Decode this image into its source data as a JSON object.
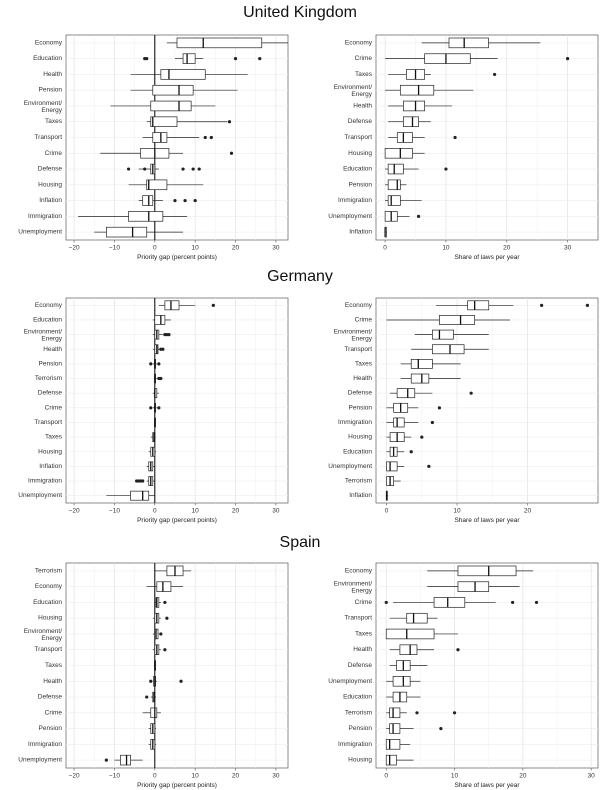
{
  "chart_data": [
    {
      "id": "uk-gap",
      "country": "United Kingdom",
      "panel": "left",
      "type": "boxplot",
      "xlabel": "Priority gap (percent points)",
      "xlim": [
        -22,
        33
      ],
      "xticks": [
        -20,
        -10,
        0,
        10,
        20,
        30
      ],
      "reference_line": 0,
      "categories": [
        "Economy",
        "Education",
        "Health",
        "Pension",
        "Environment/\nEnergy",
        "Taxes",
        "Transport",
        "Crime",
        "Defense",
        "Housing",
        "Inflation",
        "Immigration",
        "Unemployment"
      ],
      "boxes": [
        {
          "min": 3,
          "q1": 5.5,
          "median": 12,
          "q3": 26.5,
          "max": 33,
          "outliers": []
        },
        {
          "min": 5,
          "q1": 7,
          "median": 8,
          "q3": 10,
          "max": 12,
          "outliers": [
            -2.5,
            -2,
            20,
            26
          ]
        },
        {
          "min": -6,
          "q1": 1.5,
          "median": 3.5,
          "q3": 12.5,
          "max": 23,
          "outliers": []
        },
        {
          "min": -6,
          "q1": -0.5,
          "median": 6,
          "q3": 9.5,
          "max": 20.5,
          "outliers": []
        },
        {
          "min": -11,
          "q1": -1,
          "median": 6,
          "q3": 9,
          "max": 15,
          "outliers": []
        },
        {
          "min": -2,
          "q1": -1,
          "median": -0.5,
          "q3": 5.5,
          "max": 18,
          "outliers": [
            18.5
          ]
        },
        {
          "min": -3,
          "q1": -0.5,
          "median": 1.5,
          "q3": 3,
          "max": 11,
          "outliers": [
            12.5,
            14
          ]
        },
        {
          "min": -13.5,
          "q1": -3.5,
          "median": 0,
          "q3": 3.5,
          "max": 7,
          "outliers": [
            19
          ]
        },
        {
          "min": -4,
          "q1": -1,
          "median": -0.5,
          "q3": 0,
          "max": 1,
          "outliers": [
            -6.5,
            -2.5,
            7,
            9.5,
            11
          ]
        },
        {
          "min": -6.5,
          "q1": -2,
          "median": -1.5,
          "q3": 3,
          "max": 12,
          "outliers": []
        },
        {
          "min": -4,
          "q1": -3,
          "median": -1.5,
          "q3": -0.5,
          "max": 2,
          "outliers": [
            5,
            7.5,
            10
          ]
        },
        {
          "min": -19,
          "q1": -6.5,
          "median": -1.5,
          "q3": 2,
          "max": 8,
          "outliers": []
        },
        {
          "min": -15,
          "q1": -12,
          "median": -5.5,
          "q3": -2,
          "max": 7,
          "outliers": []
        }
      ]
    },
    {
      "id": "uk-laws",
      "country": "United Kingdom",
      "panel": "right",
      "type": "boxplot",
      "xlabel": "Share of laws per year",
      "xlim": [
        -1.5,
        35
      ],
      "xticks": [
        0,
        10,
        20,
        30
      ],
      "categories": [
        "Economy",
        "Crime",
        "Taxes",
        "Environment/\nEnergy",
        "Health",
        "Defense",
        "Transport",
        "Housing",
        "Education",
        "Pension",
        "Immigration",
        "Unemployment",
        "Inflation"
      ],
      "boxes": [
        {
          "min": 6,
          "q1": 10.5,
          "median": 13,
          "q3": 17,
          "max": 25.5,
          "outliers": []
        },
        {
          "min": 0,
          "q1": 6.5,
          "median": 10,
          "q3": 14,
          "max": 18.5,
          "outliers": [
            30
          ]
        },
        {
          "min": 0.5,
          "q1": 3.5,
          "median": 5,
          "q3": 6.5,
          "max": 7.5,
          "outliers": [
            18
          ]
        },
        {
          "min": 0,
          "q1": 2.5,
          "median": 5.5,
          "q3": 8,
          "max": 14.5,
          "outliers": []
        },
        {
          "min": 0.5,
          "q1": 3,
          "median": 5,
          "q3": 6.5,
          "max": 11,
          "outliers": []
        },
        {
          "min": 0.5,
          "q1": 3,
          "median": 4.5,
          "q3": 5.5,
          "max": 7.5,
          "outliers": []
        },
        {
          "min": 0.5,
          "q1": 2,
          "median": 3,
          "q3": 4.5,
          "max": 6.5,
          "outliers": [
            11.5
          ]
        },
        {
          "min": 0,
          "q1": 0,
          "median": 2.5,
          "q3": 4.5,
          "max": 6.5,
          "outliers": []
        },
        {
          "min": 0,
          "q1": 0.5,
          "median": 1.5,
          "q3": 3,
          "max": 5.5,
          "outliers": [
            10
          ]
        },
        {
          "min": 0,
          "q1": 0.5,
          "median": 2,
          "q3": 2.5,
          "max": 3.5,
          "outliers": []
        },
        {
          "min": 0,
          "q1": 0.5,
          "median": 1,
          "q3": 2.5,
          "max": 6,
          "outliers": []
        },
        {
          "min": 0,
          "q1": 0,
          "median": 1,
          "q3": 2,
          "max": 4,
          "outliers": [
            5.5
          ]
        },
        {
          "min": 0,
          "q1": 0,
          "median": 0,
          "q3": 0.2,
          "max": 0.3,
          "outliers": []
        }
      ]
    },
    {
      "id": "de-gap",
      "country": "Germany",
      "panel": "left",
      "type": "boxplot",
      "xlabel": "Priority gap (percent points)",
      "xlim": [
        -22,
        33
      ],
      "xticks": [
        -20,
        -10,
        0,
        10,
        20,
        30
      ],
      "reference_line": 0,
      "categories": [
        "Economy",
        "Education",
        "Environment/\nEnergy",
        "Health",
        "Pension",
        "Terrorism",
        "Defense",
        "Crime",
        "Transport",
        "Taxes",
        "Housing",
        "Inflation",
        "Immigration",
        "Unemployment"
      ],
      "boxes": [
        {
          "min": 1,
          "q1": 2.5,
          "median": 4,
          "q3": 6,
          "max": 10,
          "outliers": [
            14.5
          ]
        },
        {
          "min": -0.5,
          "q1": 0,
          "median": 1.5,
          "q3": 2.5,
          "max": 4,
          "outliers": []
        },
        {
          "min": -0.5,
          "q1": 0,
          "median": 0.5,
          "q3": 1,
          "max": 2,
          "outliers": [
            2.5,
            3,
            3.5
          ]
        },
        {
          "min": -0.5,
          "q1": 0,
          "median": 0.5,
          "q3": 0.8,
          "max": 1.2,
          "outliers": [
            1.5,
            2
          ]
        },
        {
          "min": -0.5,
          "q1": 0,
          "median": 0,
          "q3": 0.2,
          "max": 0.5,
          "outliers": [
            -1,
            1
          ]
        },
        {
          "min": 0,
          "q1": 0,
          "median": 0,
          "q3": 0.2,
          "max": 0.5,
          "outliers": [
            1,
            1.5
          ]
        },
        {
          "min": -0.5,
          "q1": 0,
          "median": 0,
          "q3": 0.5,
          "max": 1,
          "outliers": []
        },
        {
          "min": -0.5,
          "q1": 0,
          "median": 0,
          "q3": 0.2,
          "max": 0.5,
          "outliers": [
            -1,
            1
          ]
        },
        {
          "min": 0,
          "q1": 0,
          "median": 0,
          "q3": 0,
          "max": 0,
          "outliers": []
        },
        {
          "min": -1,
          "q1": -0.5,
          "median": -0.2,
          "q3": 0,
          "max": 0.2,
          "outliers": []
        },
        {
          "min": -1.5,
          "q1": -1,
          "median": -0.5,
          "q3": 0,
          "max": 0.3,
          "outliers": []
        },
        {
          "min": -2,
          "q1": -1.5,
          "median": -1,
          "q3": -0.5,
          "max": 0,
          "outliers": []
        },
        {
          "min": -2,
          "q1": -1.5,
          "median": -1,
          "q3": -0.5,
          "max": 0,
          "outliers": [
            -3,
            -3.5,
            -4,
            -4.5
          ]
        },
        {
          "min": -12,
          "q1": -6,
          "median": -3,
          "q3": -1.5,
          "max": 0,
          "outliers": []
        }
      ]
    },
    {
      "id": "de-laws",
      "country": "Germany",
      "panel": "right",
      "type": "boxplot",
      "xlabel": "Share of laws per year",
      "xlim": [
        -1.5,
        30
      ],
      "xticks": [
        0,
        10,
        20
      ],
      "categories": [
        "Economy",
        "Crime",
        "Environment/\nEnergy",
        "Transport",
        "Taxes",
        "Health",
        "Defense",
        "Pension",
        "Immigration",
        "Housing",
        "Education",
        "Unemployment",
        "Terrorism",
        "Inflation"
      ],
      "boxes": [
        {
          "min": 7,
          "q1": 11.5,
          "median": 12.5,
          "q3": 14.5,
          "max": 18,
          "outliers": [
            22,
            28.5
          ]
        },
        {
          "min": 0,
          "q1": 7.5,
          "median": 10.5,
          "q3": 12.5,
          "max": 17.5,
          "outliers": []
        },
        {
          "min": 4,
          "q1": 6.5,
          "median": 7.5,
          "q3": 9.5,
          "max": 14.5,
          "outliers": []
        },
        {
          "min": 3.5,
          "q1": 6.5,
          "median": 9,
          "q3": 11,
          "max": 14.5,
          "outliers": []
        },
        {
          "min": 2,
          "q1": 3.5,
          "median": 4.5,
          "q3": 6.5,
          "max": 10.5,
          "outliers": []
        },
        {
          "min": 2,
          "q1": 3.5,
          "median": 5,
          "q3": 6,
          "max": 10.5,
          "outliers": []
        },
        {
          "min": 0.5,
          "q1": 1.5,
          "median": 3,
          "q3": 4,
          "max": 6.5,
          "outliers": [
            12
          ]
        },
        {
          "min": 0,
          "q1": 1,
          "median": 2,
          "q3": 3,
          "max": 4.5,
          "outliers": [
            7.5
          ]
        },
        {
          "min": 0,
          "q1": 1,
          "median": 1.5,
          "q3": 2.5,
          "max": 4.5,
          "outliers": [
            6.5
          ]
        },
        {
          "min": 0,
          "q1": 0.5,
          "median": 1.5,
          "q3": 2.5,
          "max": 3.5,
          "outliers": [
            5
          ]
        },
        {
          "min": 0,
          "q1": 0.5,
          "median": 1,
          "q3": 1.5,
          "max": 2.5,
          "outliers": [
            3.5
          ]
        },
        {
          "min": 0,
          "q1": 0,
          "median": 0.5,
          "q3": 1.5,
          "max": 2.5,
          "outliers": [
            6
          ]
        },
        {
          "min": 0,
          "q1": 0,
          "median": 0.5,
          "q3": 1,
          "max": 2,
          "outliers": []
        },
        {
          "min": 0,
          "q1": 0,
          "median": 0,
          "q3": 0.1,
          "max": 0.2,
          "outliers": []
        }
      ]
    },
    {
      "id": "es-gap",
      "country": "Spain",
      "panel": "left",
      "type": "boxplot",
      "xlabel": "Priority gap (percent points)",
      "xlim": [
        -22,
        33
      ],
      "xticks": [
        -20,
        -10,
        0,
        10,
        20,
        30
      ],
      "reference_line": 0,
      "categories": [
        "Terrorism",
        "Economy",
        "Education",
        "Housing",
        "Environment/\nEnergy",
        "Transport",
        "Taxes",
        "Health",
        "Defense",
        "Crime",
        "Pension",
        "Immigration",
        "Unemployment"
      ],
      "boxes": [
        {
          "min": 0,
          "q1": 3,
          "median": 5,
          "q3": 7,
          "max": 9,
          "outliers": []
        },
        {
          "min": -2,
          "q1": 0.5,
          "median": 2,
          "q3": 4,
          "max": 7,
          "outliers": []
        },
        {
          "min": 0,
          "q1": 0.3,
          "median": 0.5,
          "q3": 1,
          "max": 1.5,
          "outliers": [
            2.5
          ]
        },
        {
          "min": -0.5,
          "q1": 0,
          "median": 0.5,
          "q3": 1,
          "max": 1.5,
          "outliers": [
            3
          ]
        },
        {
          "min": -0.5,
          "q1": 0,
          "median": 0.3,
          "q3": 0.8,
          "max": 1,
          "outliers": [
            1.5
          ]
        },
        {
          "min": -0.5,
          "q1": 0,
          "median": 0.5,
          "q3": 1,
          "max": 1.5,
          "outliers": [
            2.5
          ]
        },
        {
          "min": -0.2,
          "q1": 0,
          "median": 0,
          "q3": 0.2,
          "max": 0.3,
          "outliers": []
        },
        {
          "min": -0.5,
          "q1": -0.3,
          "median": 0,
          "q3": 0.2,
          "max": 0.5,
          "outliers": [
            -1,
            6.5
          ]
        },
        {
          "min": -1,
          "q1": -0.5,
          "median": -0.2,
          "q3": 0,
          "max": 0.3,
          "outliers": [
            -2
          ]
        },
        {
          "min": -3,
          "q1": -1,
          "median": 0,
          "q3": 0.5,
          "max": 1.5,
          "outliers": []
        },
        {
          "min": -1.5,
          "q1": -1,
          "median": -0.5,
          "q3": 0,
          "max": 0.3,
          "outliers": []
        },
        {
          "min": -1.5,
          "q1": -1,
          "median": -0.5,
          "q3": 0,
          "max": 0.3,
          "outliers": []
        },
        {
          "min": -10,
          "q1": -8.5,
          "median": -7,
          "q3": -6,
          "max": -3,
          "outliers": [
            -12
          ]
        }
      ]
    },
    {
      "id": "es-laws",
      "country": "Spain",
      "panel": "right",
      "type": "boxplot",
      "xlabel": "Share of laws per year",
      "xlim": [
        -1.5,
        31
      ],
      "xticks": [
        0,
        10,
        20,
        30
      ],
      "categories": [
        "Economy",
        "Environment/\nEnergy",
        "Crime",
        "Transport",
        "Taxes",
        "Health",
        "Defense",
        "Unemployment",
        "Education",
        "Terrorism",
        "Pension",
        "Immigration",
        "Housing"
      ],
      "boxes": [
        {
          "min": 6,
          "q1": 10.5,
          "median": 15,
          "q3": 19,
          "max": 21.5,
          "outliers": []
        },
        {
          "min": 6,
          "q1": 10.5,
          "median": 13,
          "q3": 15,
          "max": 19.5,
          "outliers": []
        },
        {
          "min": 1,
          "q1": 7,
          "median": 9,
          "q3": 11.5,
          "max": 16,
          "outliers": [
            0,
            18.5,
            22
          ]
        },
        {
          "min": 0.5,
          "q1": 3,
          "median": 4,
          "q3": 6,
          "max": 7.5,
          "outliers": []
        },
        {
          "min": 0,
          "q1": 0,
          "median": 3,
          "q3": 7,
          "max": 10.5,
          "outliers": []
        },
        {
          "min": 0.5,
          "q1": 2,
          "median": 3.5,
          "q3": 4.5,
          "max": 7,
          "outliers": [
            10.5
          ]
        },
        {
          "min": 0.5,
          "q1": 1.5,
          "median": 2.5,
          "q3": 3.5,
          "max": 6,
          "outliers": []
        },
        {
          "min": 0,
          "q1": 1,
          "median": 2.5,
          "q3": 3.5,
          "max": 5,
          "outliers": []
        },
        {
          "min": 0,
          "q1": 1,
          "median": 2,
          "q3": 3,
          "max": 5,
          "outliers": []
        },
        {
          "min": 0,
          "q1": 0.5,
          "median": 1,
          "q3": 2,
          "max": 3,
          "outliers": [
            4.5,
            10
          ]
        },
        {
          "min": 0,
          "q1": 0.5,
          "median": 1,
          "q3": 2,
          "max": 4,
          "outliers": [
            8
          ]
        },
        {
          "min": 0,
          "q1": 0,
          "median": 0.5,
          "q3": 2,
          "max": 3.5,
          "outliers": []
        },
        {
          "min": 0,
          "q1": 0,
          "median": 0.5,
          "q3": 1.5,
          "max": 4,
          "outliers": []
        }
      ]
    }
  ]
}
